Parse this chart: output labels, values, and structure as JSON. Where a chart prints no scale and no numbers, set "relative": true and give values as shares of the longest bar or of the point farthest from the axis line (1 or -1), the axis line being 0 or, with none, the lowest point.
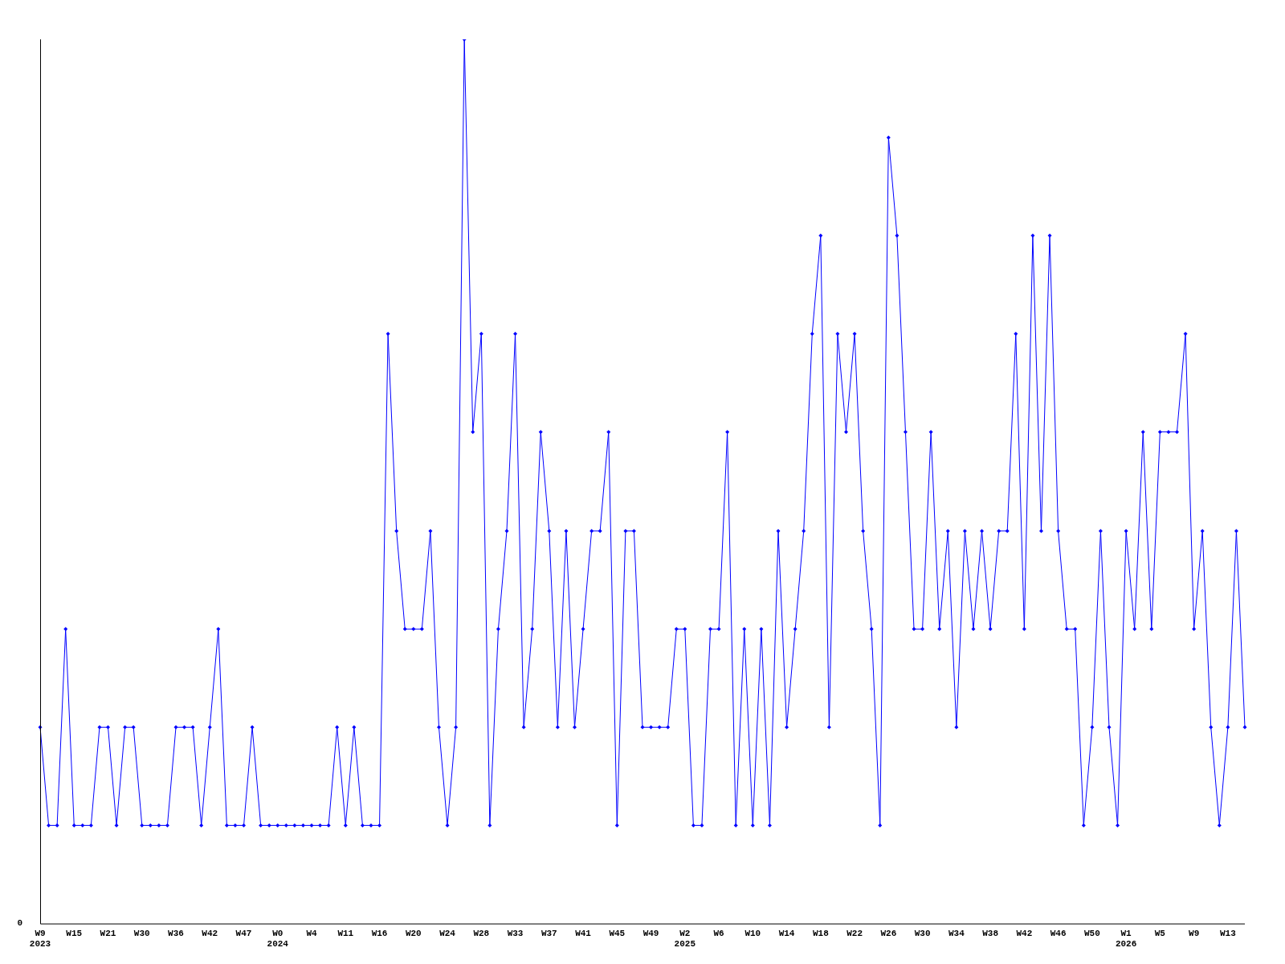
{
  "chart_data": {
    "type": "line",
    "relative": true,
    "grid": false,
    "legend": false,
    "marker": "diamond",
    "line_style": "solid",
    "annotations": [
      "0"
    ],
    "categories": [
      "W9\n2023",
      null,
      null,
      null,
      "W15",
      null,
      null,
      null,
      "W21",
      null,
      null,
      null,
      "W30",
      null,
      null,
      null,
      "W36",
      null,
      null,
      null,
      "W42",
      null,
      null,
      null,
      "W47",
      null,
      null,
      null,
      "W0\n2024",
      null,
      null,
      null,
      "W4",
      null,
      null,
      null,
      "W11",
      null,
      null,
      null,
      "W16",
      null,
      null,
      null,
      "W20",
      null,
      null,
      null,
      "W24",
      null,
      null,
      null,
      "W28",
      null,
      null,
      null,
      "W33",
      null,
      null,
      null,
      "W37",
      null,
      null,
      null,
      "W41",
      null,
      null,
      null,
      "W45",
      null,
      null,
      null,
      "W49",
      null,
      null,
      null,
      "W2\n2025",
      null,
      null,
      null,
      "W6",
      null,
      null,
      null,
      "W10",
      null,
      null,
      null,
      "W14",
      null,
      null,
      null,
      "W18",
      null,
      null,
      null,
      "W22",
      null,
      null,
      null,
      "W26",
      null,
      null,
      null,
      "W30",
      null,
      null,
      null,
      "W34",
      null,
      null,
      null,
      "W38",
      null,
      null,
      null,
      "W42",
      null,
      null,
      null,
      "W46",
      null,
      null,
      null,
      "W50",
      null,
      null,
      null,
      "W1\n2026",
      null,
      null,
      null,
      "W5",
      null,
      null,
      null,
      "W9",
      null,
      null,
      null,
      "W13",
      null,
      null
    ],
    "series": [
      {
        "color": "#0000ff",
        "values": [
          0.222,
          0.111,
          0.111,
          0.333,
          0.111,
          0.111,
          0.111,
          0.222,
          0.222,
          0.111,
          0.222,
          0.222,
          0.111,
          0.111,
          0.111,
          0.111,
          0.222,
          0.222,
          0.222,
          0.111,
          0.222,
          0.333,
          0.111,
          0.111,
          0.111,
          0.222,
          0.111,
          0.111,
          0.111,
          0.111,
          0.111,
          0.111,
          0.111,
          0.111,
          0.111,
          0.222,
          0.111,
          0.222,
          0.111,
          0.111,
          0.111,
          0.667,
          0.444,
          0.333,
          0.333,
          0.333,
          0.444,
          0.222,
          0.111,
          0.222,
          1,
          0.556,
          0.667,
          0.111,
          0.333,
          0.444,
          0.667,
          0.222,
          0.333,
          0.556,
          0.444,
          0.222,
          0.444,
          0.222,
          0.333,
          0.444,
          0.444,
          0.556,
          0.111,
          0.444,
          0.444,
          0.222,
          0.222,
          0.222,
          0.222,
          0.333,
          0.333,
          0.111,
          0.111,
          0.333,
          0.333,
          0.556,
          0.111,
          0.333,
          0.111,
          0.333,
          0.111,
          0.444,
          0.222,
          0.333,
          0.444,
          0.667,
          0.778,
          0.222,
          0.667,
          0.556,
          0.667,
          0.444,
          0.333,
          0.111,
          0.889,
          0.778,
          0.556,
          0.333,
          0.333,
          0.556,
          0.333,
          0.444,
          0.222,
          0.444,
          0.333,
          0.444,
          0.333,
          0.444,
          0.444,
          0.667,
          0.333,
          0.778,
          0.444,
          0.778,
          0.444,
          0.333,
          0.333,
          0.111,
          0.222,
          0.444,
          0.222,
          0.111,
          0.444,
          0.333,
          0.556,
          0.333,
          0.556,
          0.556,
          0.556,
          0.667,
          0.333,
          0.444,
          0.222,
          0.111,
          0.222,
          0.444,
          0.222
        ]
      }
    ]
  }
}
